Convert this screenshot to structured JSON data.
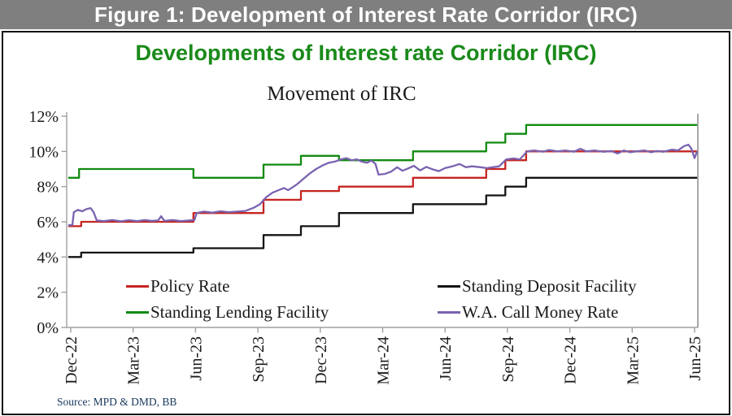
{
  "header": {
    "title": "Figure 1: Development of Interest Rate Corridor (IRC)"
  },
  "figure": {
    "title": "Developments of Interest rate Corridor (IRC)",
    "source": "Source: MPD & DMD, BB"
  },
  "chart_data": {
    "type": "line",
    "title": "Movement of IRC",
    "x_unit": "months since Dec-22",
    "x_tick_months": [
      0,
      3,
      6,
      9,
      12,
      15,
      18,
      21,
      24,
      27,
      30
    ],
    "x_tick_labels": [
      "Dec-22",
      "Mar-23",
      "Jun-23",
      "Sep-23",
      "Dec-23",
      "Mar-24",
      "Jun-24",
      "Sep-24",
      "Dec-24",
      "Mar-25",
      "Jun-25"
    ],
    "ylim": [
      0,
      12
    ],
    "y_ticks": [
      0,
      2,
      4,
      6,
      8,
      10,
      12
    ],
    "y_tick_suffix": "%",
    "grid": "off",
    "legend_position": "inside-bottom",
    "legend": [
      {
        "label": "Policy Rate",
        "color": "#c62420"
      },
      {
        "label": "Standing Deposit Facility",
        "color": "#141414"
      },
      {
        "label": "Standing Lending Facility",
        "color": "#128a12"
      },
      {
        "label": "W.A. Call Money Rate",
        "color": "#7a63b0"
      }
    ],
    "series": [
      {
        "name": "Policy Rate",
        "color": "#c62420",
        "kind": "step",
        "steps": [
          [
            -0.12,
            5.75
          ],
          [
            0.5,
            6.0
          ],
          [
            5.9,
            6.5
          ],
          [
            9.27,
            7.25
          ],
          [
            11.07,
            7.75
          ],
          [
            12.9,
            8.0
          ],
          [
            16.46,
            8.5
          ],
          [
            19.98,
            9.0
          ],
          [
            20.9,
            9.5
          ],
          [
            21.9,
            10.0
          ]
        ],
        "end_month": 30.12
      },
      {
        "name": "Standing Deposit Facility",
        "color": "#141414",
        "kind": "step",
        "steps": [
          [
            -0.12,
            4.0
          ],
          [
            0.5,
            4.25
          ],
          [
            5.9,
            4.5
          ],
          [
            9.27,
            5.25
          ],
          [
            11.07,
            5.75
          ],
          [
            12.9,
            6.5
          ],
          [
            16.46,
            7.0
          ],
          [
            19.98,
            7.5
          ],
          [
            20.9,
            8.0
          ],
          [
            21.9,
            8.5
          ]
        ],
        "end_month": 30.12
      },
      {
        "name": "Standing Lending Facility",
        "color": "#128a12",
        "kind": "step",
        "steps": [
          [
            -0.12,
            8.5
          ],
          [
            0.4,
            9.0
          ],
          [
            5.9,
            8.5
          ],
          [
            9.27,
            9.25
          ],
          [
            11.07,
            9.75
          ],
          [
            12.9,
            9.5
          ],
          [
            16.46,
            10.0
          ],
          [
            19.98,
            10.5
          ],
          [
            20.9,
            11.0
          ],
          [
            21.9,
            11.5
          ]
        ],
        "end_month": 30.12
      },
      {
        "name": "W.A. Call Money Rate",
        "color": "#7a63b0",
        "kind": "line",
        "points": [
          [
            -0.12,
            5.8
          ],
          [
            0.08,
            5.82
          ],
          [
            0.15,
            6.55
          ],
          [
            0.35,
            6.68
          ],
          [
            0.55,
            6.6
          ],
          [
            0.75,
            6.72
          ],
          [
            0.95,
            6.78
          ],
          [
            1.1,
            6.55
          ],
          [
            1.25,
            6.08
          ],
          [
            1.6,
            6.04
          ],
          [
            2.0,
            6.1
          ],
          [
            2.4,
            6.03
          ],
          [
            2.8,
            6.09
          ],
          [
            3.2,
            6.04
          ],
          [
            3.55,
            6.1
          ],
          [
            3.9,
            6.05
          ],
          [
            4.2,
            6.08
          ],
          [
            4.35,
            6.32
          ],
          [
            4.5,
            6.05
          ],
          [
            4.9,
            6.1
          ],
          [
            5.3,
            6.04
          ],
          [
            5.7,
            6.08
          ],
          [
            5.95,
            6.1
          ],
          [
            6.05,
            6.5
          ],
          [
            6.4,
            6.58
          ],
          [
            6.8,
            6.52
          ],
          [
            7.2,
            6.6
          ],
          [
            7.6,
            6.55
          ],
          [
            8.0,
            6.58
          ],
          [
            8.4,
            6.62
          ],
          [
            8.8,
            6.8
          ],
          [
            9.1,
            7.0
          ],
          [
            9.4,
            7.4
          ],
          [
            9.7,
            7.65
          ],
          [
            10.0,
            7.8
          ],
          [
            10.25,
            7.92
          ],
          [
            10.45,
            7.8
          ],
          [
            10.65,
            7.95
          ],
          [
            10.9,
            8.15
          ],
          [
            11.2,
            8.45
          ],
          [
            11.5,
            8.75
          ],
          [
            11.8,
            9.0
          ],
          [
            12.1,
            9.2
          ],
          [
            12.4,
            9.35
          ],
          [
            12.7,
            9.42
          ],
          [
            13.0,
            9.55
          ],
          [
            13.25,
            9.62
          ],
          [
            13.5,
            9.5
          ],
          [
            13.75,
            9.55
          ],
          [
            14.0,
            9.42
          ],
          [
            14.25,
            9.35
          ],
          [
            14.45,
            9.48
          ],
          [
            14.65,
            9.3
          ],
          [
            14.8,
            8.68
          ],
          [
            15.1,
            8.72
          ],
          [
            15.4,
            8.85
          ],
          [
            15.7,
            9.1
          ],
          [
            15.95,
            8.9
          ],
          [
            16.2,
            9.02
          ],
          [
            16.5,
            9.18
          ],
          [
            16.8,
            8.92
          ],
          [
            17.1,
            9.12
          ],
          [
            17.4,
            8.98
          ],
          [
            17.7,
            8.88
          ],
          [
            18.0,
            9.05
          ],
          [
            18.35,
            9.15
          ],
          [
            18.7,
            9.28
          ],
          [
            19.0,
            9.1
          ],
          [
            19.3,
            9.15
          ],
          [
            19.7,
            9.1
          ],
          [
            20.0,
            9.05
          ],
          [
            20.3,
            9.1
          ],
          [
            20.6,
            9.15
          ],
          [
            20.95,
            9.55
          ],
          [
            21.3,
            9.6
          ],
          [
            21.6,
            9.55
          ],
          [
            21.95,
            10.0
          ],
          [
            22.3,
            10.05
          ],
          [
            22.7,
            9.98
          ],
          [
            23.0,
            10.08
          ],
          [
            23.4,
            10.0
          ],
          [
            23.8,
            10.05
          ],
          [
            24.2,
            9.98
          ],
          [
            24.5,
            10.15
          ],
          [
            24.8,
            10.0
          ],
          [
            25.2,
            10.05
          ],
          [
            25.6,
            9.98
          ],
          [
            26.0,
            10.02
          ],
          [
            26.3,
            9.88
          ],
          [
            26.6,
            10.05
          ],
          [
            26.9,
            9.95
          ],
          [
            27.2,
            10.0
          ],
          [
            27.6,
            10.05
          ],
          [
            27.9,
            9.95
          ],
          [
            28.2,
            10.02
          ],
          [
            28.5,
            9.98
          ],
          [
            28.9,
            10.1
          ],
          [
            29.2,
            10.05
          ],
          [
            29.5,
            10.3
          ],
          [
            29.7,
            10.38
          ],
          [
            29.85,
            10.15
          ],
          [
            30.0,
            9.62
          ],
          [
            30.12,
            10.0
          ]
        ]
      }
    ]
  }
}
